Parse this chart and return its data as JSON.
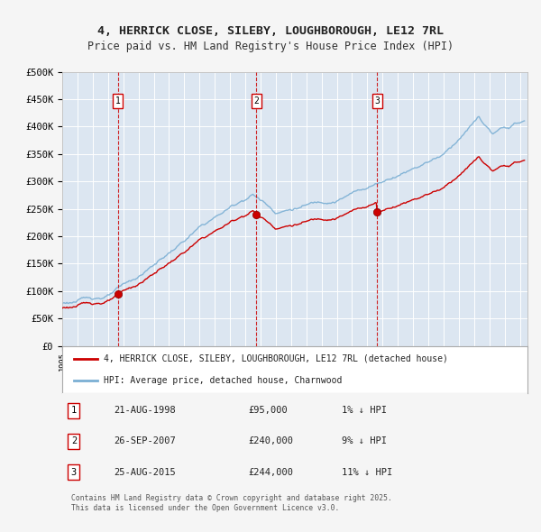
{
  "title": "4, HERRICK CLOSE, SILEBY, LOUGHBOROUGH, LE12 7RL",
  "subtitle": "Price paid vs. HM Land Registry's House Price Index (HPI)",
  "ylabel_ticks": [
    "£0",
    "£50K",
    "£100K",
    "£150K",
    "£200K",
    "£250K",
    "£300K",
    "£350K",
    "£400K",
    "£450K",
    "£500K"
  ],
  "ylim": [
    0,
    500000
  ],
  "ytick_vals": [
    0,
    50000,
    100000,
    150000,
    200000,
    250000,
    300000,
    350000,
    400000,
    450000,
    500000
  ],
  "xlim_start": 1995.0,
  "xlim_end": 2025.5,
  "background_color": "#dce6f1",
  "plot_bg_color": "#dce6f1",
  "grid_color": "#ffffff",
  "sale_dates": [
    1998.644,
    2007.736,
    2015.644
  ],
  "sale_prices": [
    95000,
    240000,
    244000
  ],
  "sale_labels": [
    "1",
    "2",
    "3"
  ],
  "sale_line_color": "#cc0000",
  "hpi_line_color": "#7bafd4",
  "legend_entries": [
    "4, HERRICK CLOSE, SILEBY, LOUGHBOROUGH, LE12 7RL (detached house)",
    "HPI: Average price, detached house, Charnwood"
  ],
  "table_rows": [
    {
      "num": "1",
      "date": "21-AUG-1998",
      "price": "£95,000",
      "note": "1% ↓ HPI"
    },
    {
      "num": "2",
      "date": "26-SEP-2007",
      "price": "£240,000",
      "note": "9% ↓ HPI"
    },
    {
      "num": "3",
      "date": "25-AUG-2015",
      "price": "£244,000",
      "note": "11% ↓ HPI"
    }
  ],
  "footer": "Contains HM Land Registry data © Crown copyright and database right 2025.\nThis data is licensed under the Open Government Licence v3.0.",
  "title_fontsize": 9.5,
  "subtitle_fontsize": 8.5,
  "tick_fontsize": 7.5
}
